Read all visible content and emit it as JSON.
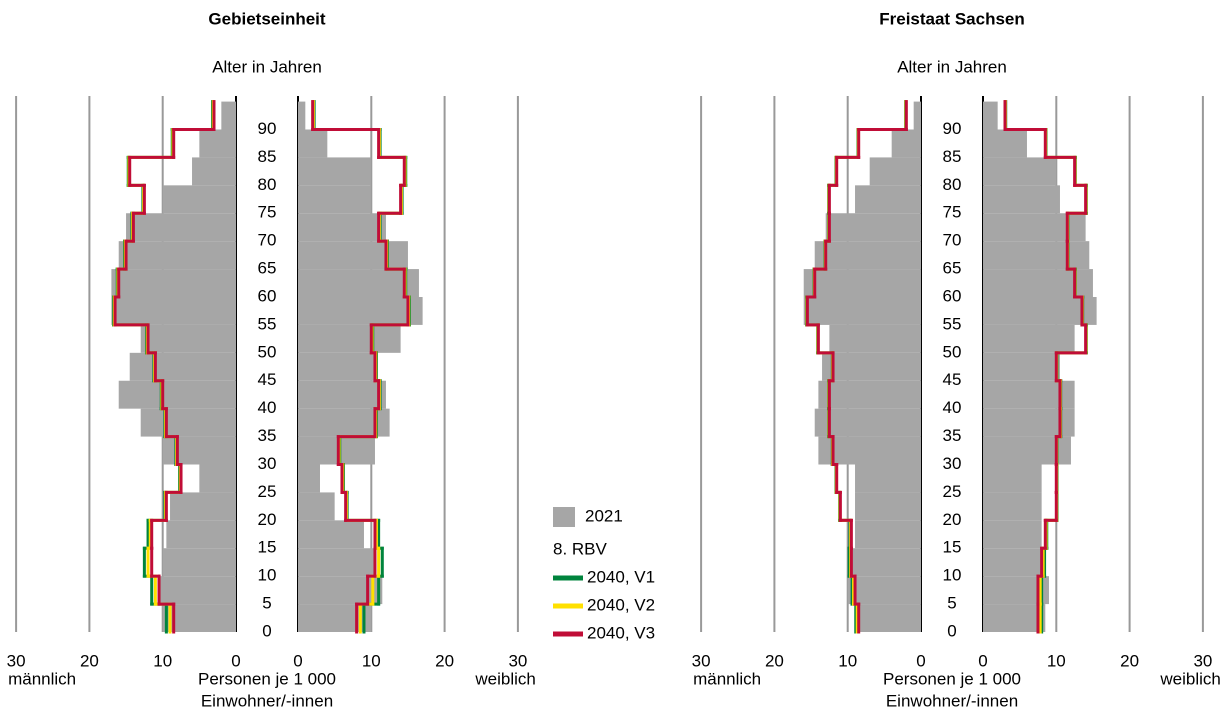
{
  "chart_data": [
    {
      "type": "pyramid",
      "title": "Gebietseinheit",
      "ylabel": "Alter in Jahren",
      "xlabel": [
        "Personen je 1 000",
        "Einwohner/-innen"
      ],
      "left_label": "männlich",
      "right_label": "weiblich",
      "xlim": [
        0,
        30
      ],
      "xticks": [
        0,
        10,
        20,
        30
      ],
      "ylim": [
        0,
        96
      ],
      "yticks": [
        0,
        5,
        10,
        15,
        20,
        25,
        30,
        35,
        40,
        45,
        50,
        55,
        60,
        65,
        70,
        75,
        80,
        85,
        90
      ],
      "bins": [
        0,
        5,
        10,
        15,
        20,
        25,
        30,
        35,
        40,
        45,
        50,
        55,
        60,
        65,
        70,
        75,
        80,
        85,
        90,
        95
      ],
      "legend_group_title": "8. RBV",
      "series": [
        {
          "name": "2021",
          "kind": "bar",
          "color": "#a6a6a6",
          "male": [
            10,
            10.5,
            10,
            9.5,
            9,
            5,
            10,
            13,
            16,
            14.5,
            13,
            17,
            17,
            16,
            15,
            10,
            6,
            5,
            2
          ],
          "female": [
            10,
            11.5,
            10.5,
            9,
            5,
            3,
            10.5,
            12.5,
            12,
            10.5,
            14,
            17,
            16.5,
            15,
            12,
            10,
            10,
            4,
            1
          ]
        },
        {
          "name": "2040, V1",
          "kind": "line",
          "color": "#00843d",
          "male": [
            9.5,
            11.5,
            12.5,
            12,
            9.7,
            7.7,
            8.2,
            9.7,
            10.2,
            11.2,
            12.2,
            16.7,
            16.2,
            15.2,
            14.2,
            12.7,
            14.7,
            8.7,
            3.2
          ],
          "female": [
            9,
            11,
            11.5,
            11,
            6.7,
            6.2,
            5.7,
            10.7,
            11.2,
            10.7,
            10.2,
            15.2,
            14.7,
            12.2,
            11.2,
            14.2,
            14.7,
            11.2,
            2.2
          ]
        },
        {
          "name": "2040, V2",
          "kind": "line",
          "color": "#ffe000",
          "male": [
            9,
            11,
            12,
            11.7,
            9.6,
            7.6,
            8.1,
            9.6,
            10.1,
            11.1,
            12.1,
            16.6,
            16.1,
            15.1,
            14.1,
            12.6,
            14.6,
            8.6,
            3.1
          ],
          "female": [
            8.5,
            10.2,
            11,
            10.7,
            6.6,
            6.1,
            5.6,
            10.6,
            11.1,
            10.6,
            10.1,
            15.1,
            14.6,
            12.1,
            11.1,
            14.1,
            14.6,
            11.1,
            2.1
          ]
        },
        {
          "name": "2040, V3",
          "kind": "line",
          "color": "#c00d37",
          "male": [
            8.5,
            10.5,
            11.5,
            11.5,
            9.5,
            7.5,
            8,
            9.5,
            10,
            11,
            12,
            16.5,
            16,
            15,
            14,
            12.5,
            14.5,
            8.5,
            3
          ],
          "female": [
            8,
            9.5,
            10.5,
            10.5,
            6.5,
            6,
            5.5,
            10.5,
            11,
            10.5,
            10,
            15,
            14.5,
            12,
            11,
            14,
            14.5,
            11,
            2
          ]
        }
      ]
    },
    {
      "type": "pyramid",
      "title": "Freistaat Sachsen",
      "ylabel": "Alter in Jahren",
      "xlabel": [
        "Personen je 1 000",
        "Einwohner/-innen"
      ],
      "left_label": "männlich",
      "right_label": "weiblich",
      "xlim": [
        0,
        30
      ],
      "xticks": [
        0,
        10,
        20,
        30
      ],
      "ylim": [
        0,
        96
      ],
      "yticks": [
        0,
        5,
        10,
        15,
        20,
        25,
        30,
        35,
        40,
        45,
        50,
        55,
        60,
        65,
        70,
        75,
        80,
        85,
        90
      ],
      "bins": [
        0,
        5,
        10,
        15,
        20,
        25,
        30,
        35,
        40,
        45,
        50,
        55,
        60,
        65,
        70,
        75,
        80,
        85,
        90,
        95
      ],
      "series": [
        {
          "kind": "bar",
          "color": "#a6a6a6",
          "male": [
            9,
            10,
            9.5,
            9,
            9,
            9,
            14,
            14.5,
            14,
            13.5,
            12.5,
            16,
            16,
            14.5,
            13,
            9,
            7,
            4,
            1
          ],
          "female": [
            8.5,
            9,
            8.5,
            8,
            8,
            8,
            12,
            12.5,
            12.5,
            10.5,
            12.5,
            15.5,
            15,
            14.5,
            14,
            10.5,
            10,
            6,
            2
          ]
        },
        {
          "kind": "line",
          "color": "#00843d",
          "male": [
            8.9,
            9.4,
            9.8,
            9.7,
            11.1,
            11.6,
            12.1,
            12.6,
            12.6,
            12.1,
            14.1,
            15.6,
            14.6,
            13.1,
            12.6,
            12.6,
            11.6,
            8.6,
            2.1
          ],
          "female": [
            8,
            8,
            8.4,
            8.7,
            10.1,
            10.1,
            10.1,
            10.6,
            10.6,
            10.1,
            14.1,
            13.6,
            12.6,
            11.6,
            11.6,
            14.1,
            12.6,
            8.6,
            3.1
          ]
        },
        {
          "kind": "line",
          "color": "#ffe000",
          "male": [
            8.7,
            9.2,
            9.6,
            9.6,
            11.05,
            11.55,
            12.05,
            12.55,
            12.55,
            12.05,
            14.05,
            15.55,
            14.55,
            13.05,
            12.55,
            12.55,
            11.55,
            8.55,
            2.05
          ],
          "female": [
            7.8,
            7.8,
            8.2,
            8.6,
            10.05,
            10.05,
            10.05,
            10.55,
            10.55,
            10.05,
            14.05,
            13.55,
            12.55,
            11.55,
            11.55,
            14.05,
            12.55,
            8.55,
            3.05
          ]
        },
        {
          "kind": "line",
          "color": "#c00d37",
          "male": [
            8.5,
            9,
            9.5,
            9.5,
            11,
            11.5,
            12,
            12.5,
            12.5,
            12,
            14,
            15.5,
            14.5,
            13,
            12.5,
            12.5,
            11.5,
            8.5,
            2
          ],
          "female": [
            7.5,
            7.5,
            8,
            8.5,
            10,
            10,
            10,
            10.5,
            10.5,
            10,
            14,
            13.5,
            12.5,
            11.5,
            11.5,
            14,
            12.5,
            8.5,
            3
          ]
        }
      ]
    }
  ]
}
